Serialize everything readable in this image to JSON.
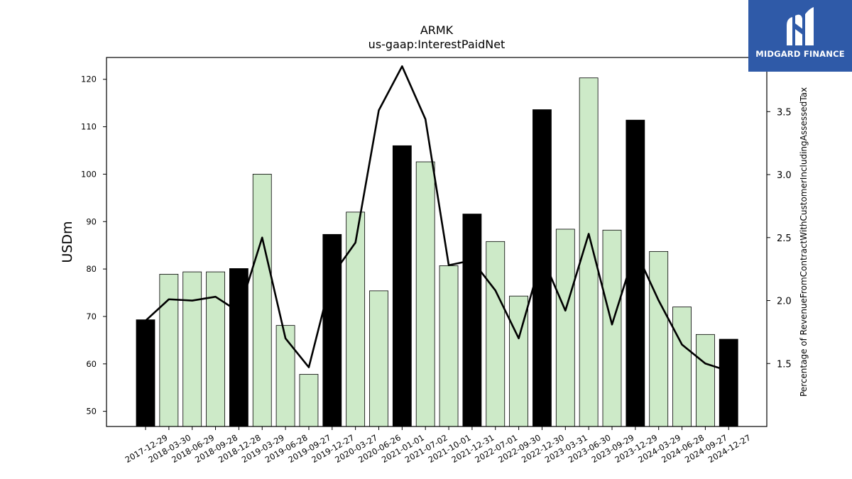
{
  "chart_data": {
    "type": "bar",
    "title": "ARMK",
    "subtitle": "us-gaap:InterestPaidNet",
    "ylabel": "USDm",
    "y2label": "Percentage of RevenueFromContractWithCustomerIncludingAssessedTax",
    "ylim": [
      46.8,
      124.6
    ],
    "y2lim": [
      1.0,
      3.93
    ],
    "yticks": [
      50,
      60,
      70,
      80,
      90,
      100,
      110,
      120
    ],
    "y2ticks": [
      1.5,
      2.0,
      2.5,
      3.0,
      3.5
    ],
    "categories": [
      "2017-12-29",
      "2018-03-30",
      "2018-06-29",
      "2018-09-28",
      "2018-12-28",
      "2019-03-29",
      "2019-06-28",
      "2019-09-27",
      "2019-12-27",
      "2020-03-27",
      "2020-06-26",
      "2021-01-01",
      "2021-07-02",
      "2021-10-01",
      "2021-12-31",
      "2022-07-01",
      "2022-09-30",
      "2022-12-30",
      "2023-03-31",
      "2023-06-30",
      "2023-09-29",
      "2023-12-29",
      "2024-03-29",
      "2024-06-28",
      "2024-09-27",
      "2024-12-27"
    ],
    "values": [
      69.3,
      78.9,
      79.4,
      79.4,
      80.1,
      100.0,
      68.1,
      57.8,
      87.3,
      92.0,
      75.4,
      106.0,
      102.6,
      80.7,
      91.6,
      85.8,
      74.3,
      113.6,
      88.4,
      120.3,
      88.2,
      111.4,
      83.7,
      72.0,
      66.2,
      65.2
    ],
    "highlight": [
      true,
      false,
      false,
      false,
      true,
      false,
      false,
      false,
      true,
      false,
      false,
      true,
      false,
      false,
      true,
      false,
      false,
      true,
      false,
      false,
      false,
      true,
      false,
      false,
      false,
      true
    ],
    "line_values": [
      1.84,
      2.01,
      2.0,
      2.03,
      1.91,
      2.5,
      1.7,
      1.47,
      2.2,
      2.46,
      3.51,
      3.86,
      3.44,
      2.28,
      2.32,
      2.08,
      1.7,
      2.35,
      1.92,
      2.53,
      1.81,
      2.4,
      2.0,
      1.65,
      1.5,
      1.44
    ],
    "colors": {
      "highlight_bar": "#000000",
      "bar": "#cdeac8",
      "bar_edge": "#000000",
      "line": "#000000"
    },
    "grid": false,
    "legend": "none"
  },
  "logo": {
    "text": "MIDGARD FINANCE",
    "icon": "midgard-logo-icon",
    "background": "#2f5aa8"
  }
}
